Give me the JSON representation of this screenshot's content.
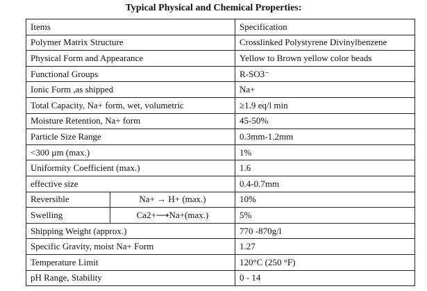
{
  "title": "Typical Physical and Chemical Properties:",
  "table": {
    "header": [
      "Items",
      "Specification"
    ],
    "rows": [
      {
        "label": "Polymer Matrix Structure",
        "spec": "Crosslinked Polystyrene Divinylbenzene"
      },
      {
        "label": "Physical Form and Appearance",
        "spec": "Yellow to Brown yellow color beads"
      },
      {
        "label": "Functional Groups",
        "spec": "R-SO3⁻"
      },
      {
        "label": "Ionic Form ,as shipped",
        "spec": "Na+"
      },
      {
        "label": "Total Capacity, Na+ form, wet, volumetric",
        "spec": "≥1.9 eq/l min"
      },
      {
        "label": "Moisture Retention, Na+ form",
        "spec": "45-50%"
      },
      {
        "label": "Particle Size Range",
        "spec": "0.3mm-1.2mm"
      },
      {
        "label": "<300 µm (max.)",
        "spec": "1%"
      },
      {
        "label": "Uniformity Coefficient (max.)",
        "spec": "1.6"
      },
      {
        "label": "effective size",
        "spec": "0.4-0.7mm"
      },
      {
        "label": "Reversible",
        "detail": "Na+ → H+ (max.)",
        "spec": "10%"
      },
      {
        "label": "Swelling",
        "detail": "Ca2+⟶Na+(max.)",
        "spec": "5%"
      },
      {
        "label": "Shipping Weight (approx.)",
        "spec": "770 -870g/l"
      },
      {
        "label": "Specific Gravity, moist Na+ Form",
        "spec": "1.27"
      },
      {
        "label": "Temperature Limit",
        "spec": "120°C (250 °F)"
      },
      {
        "label": "pH Range, Stability",
        "spec": "0 - 14"
      }
    ]
  }
}
